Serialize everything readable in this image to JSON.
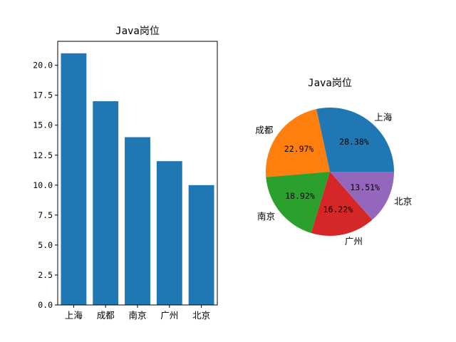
{
  "chart_data": [
    {
      "type": "bar",
      "title": "Java岗位",
      "categories": [
        "上海",
        "成都",
        "南京",
        "广州",
        "北京"
      ],
      "values": [
        21,
        17,
        14,
        12,
        10
      ],
      "ylim": [
        0,
        22
      ],
      "yticks": [
        "0.0",
        "2.5",
        "5.0",
        "7.5",
        "10.0",
        "12.5",
        "15.0",
        "17.5",
        "20.0"
      ],
      "color": "#1f77b4"
    },
    {
      "type": "pie",
      "title": "Java岗位",
      "labels": [
        "上海",
        "成都",
        "南京",
        "广州",
        "北京"
      ],
      "values": [
        21,
        17,
        14,
        12,
        10
      ],
      "percent_labels": [
        "28.38%",
        "22.97%",
        "18.92%",
        "16.22%",
        "13.51%"
      ],
      "colors": [
        "#1f77b4",
        "#ff7f0e",
        "#2ca02c",
        "#d62728",
        "#9467bd"
      ]
    }
  ]
}
